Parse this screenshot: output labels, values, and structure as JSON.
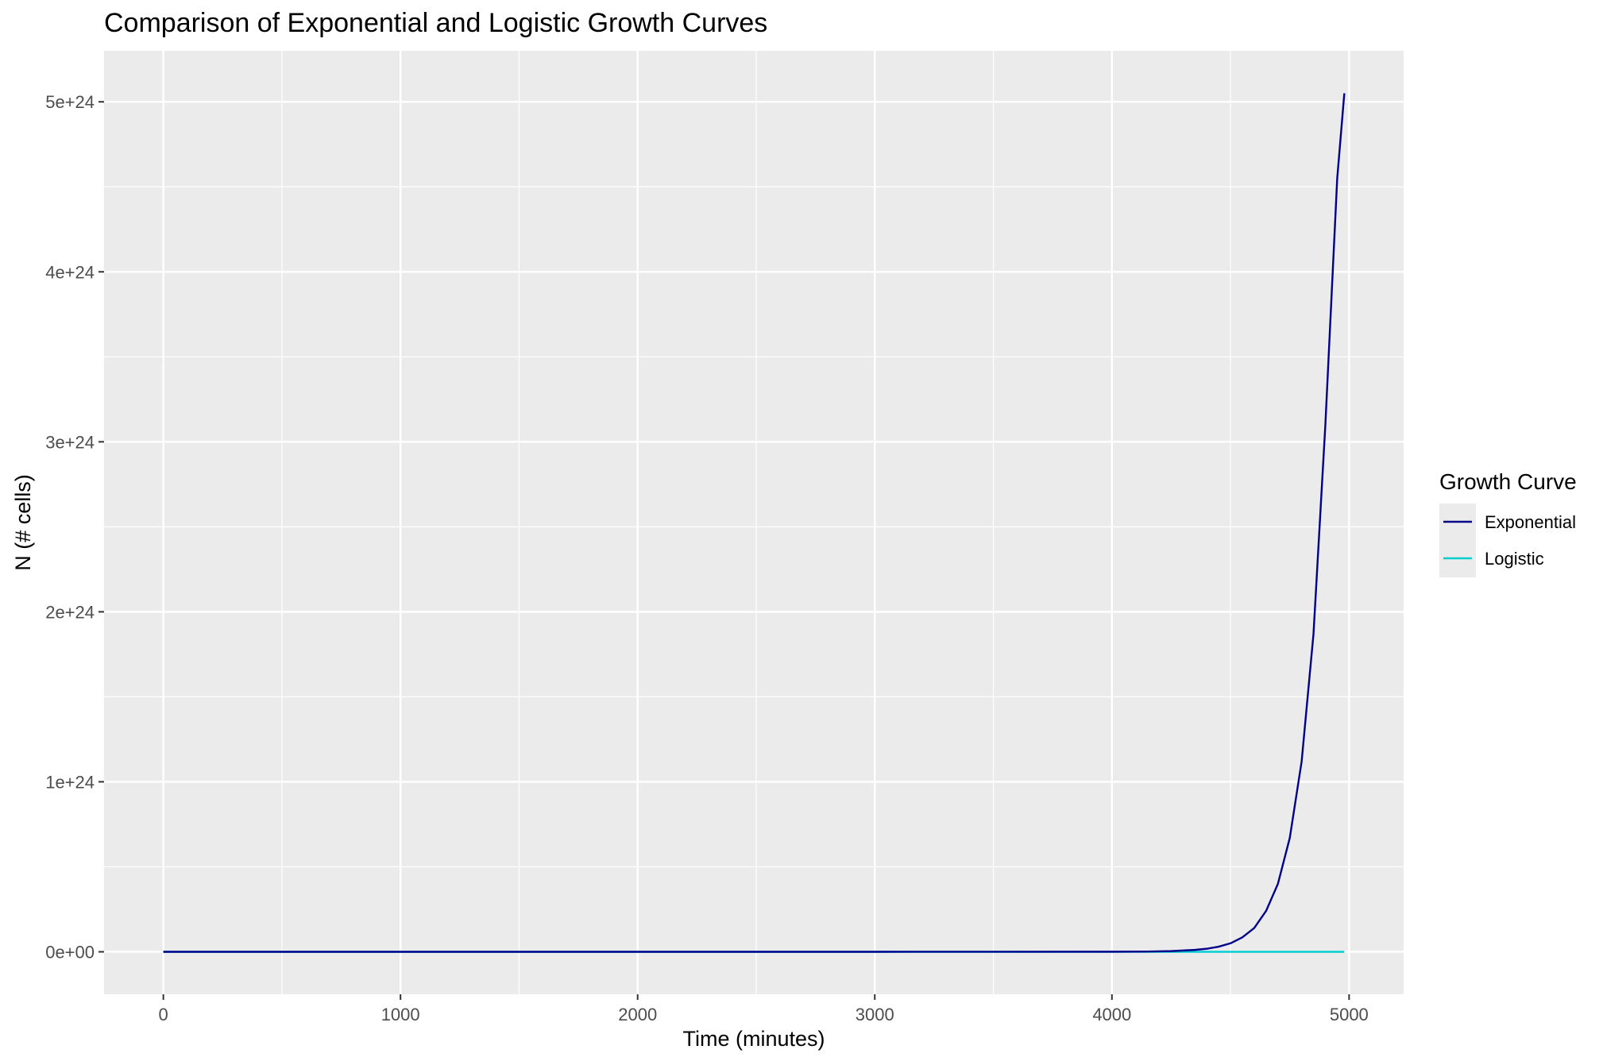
{
  "chart_data": {
    "type": "line",
    "title": "Comparison of Exponential and Logistic Growth Curves",
    "xlabel": "Time (minutes)",
    "ylabel": "N (# cells)",
    "xlim": [
      -250,
      5230
    ],
    "ylim": [
      -2.5e+23,
      5.3e+24
    ],
    "x_ticks": [
      0,
      1000,
      2000,
      3000,
      4000,
      5000
    ],
    "x_tick_labels": [
      "0",
      "1000",
      "2000",
      "3000",
      "4000",
      "5000"
    ],
    "y_ticks": [
      0,
      1e+24,
      2e+24,
      3e+24,
      4e+24,
      5e+24
    ],
    "y_tick_labels": [
      "0e+00",
      "1e+24",
      "2e+24",
      "3e+24",
      "4e+24",
      "5e+24"
    ],
    "grid": true,
    "legend": {
      "title": "Growth Curve",
      "position": "right"
    },
    "x": [
      0,
      1000,
      2000,
      3000,
      4000,
      4150,
      4250,
      4350,
      4400,
      4450,
      4500,
      4550,
      4600,
      4650,
      4700,
      4750,
      4800,
      4850,
      4900,
      4950,
      4980
    ],
    "series": [
      {
        "name": "Exponential",
        "color": "#00008b",
        "values": [
          0,
          0,
          0,
          0,
          5e+20,
          1.5e+21,
          4e+21,
          1.1e+22,
          1.8e+22,
          3e+22,
          5e+22,
          8.5e+22,
          1.4e+23,
          2.4e+23,
          4e+23,
          6.7e+23,
          1.12e+24,
          1.87e+24,
          3.1e+24,
          4.55e+24,
          5.05e+24
        ]
      },
      {
        "name": "Logistic",
        "color": "#00ced1",
        "values": [
          0,
          0,
          0,
          0,
          0,
          0,
          0,
          0,
          0,
          0,
          0,
          0,
          0,
          0,
          0,
          0,
          0,
          0,
          0,
          0,
          0
        ]
      }
    ]
  }
}
